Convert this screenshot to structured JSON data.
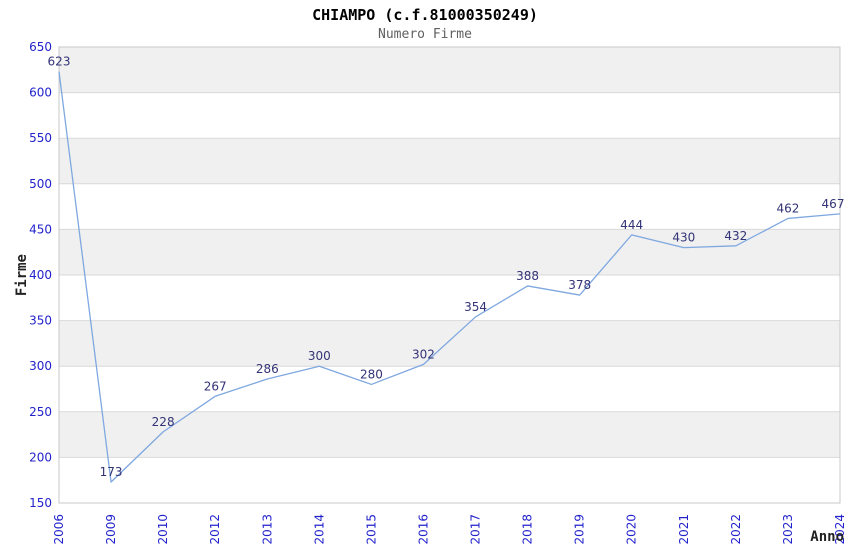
{
  "window": {
    "title": "CHIAMPO (c.f.81000350249)",
    "subtitle": "Numero Firme"
  },
  "chart_data": {
    "type": "line",
    "title": "CHIAMPO (c.f.81000350249)",
    "subtitle": "Numero Firme",
    "xlabel": "Anno",
    "ylabel": "Firme",
    "categories": [
      "2006",
      "2009",
      "2010",
      "2012",
      "2013",
      "2014",
      "2015",
      "2016",
      "2017",
      "2018",
      "2019",
      "2020",
      "2021",
      "2022",
      "2023",
      "2024"
    ],
    "values": [
      623,
      173,
      228,
      267,
      286,
      300,
      280,
      302,
      354,
      388,
      378,
      444,
      430,
      432,
      462,
      467
    ],
    "ylim": [
      150,
      650
    ],
    "ytick_step": 50,
    "grid": true,
    "legend_position": "none",
    "point_markers": false,
    "colors": {
      "line": "#7fa8e0",
      "data_label": "#333377",
      "tick_label": "#2323cc",
      "band": "#f0f0f0",
      "gridline": "#d9d9d9",
      "plot_border": "#c8c8c8",
      "axis_title": "#222222",
      "title": "#000000",
      "subtitle": "#606060"
    }
  }
}
